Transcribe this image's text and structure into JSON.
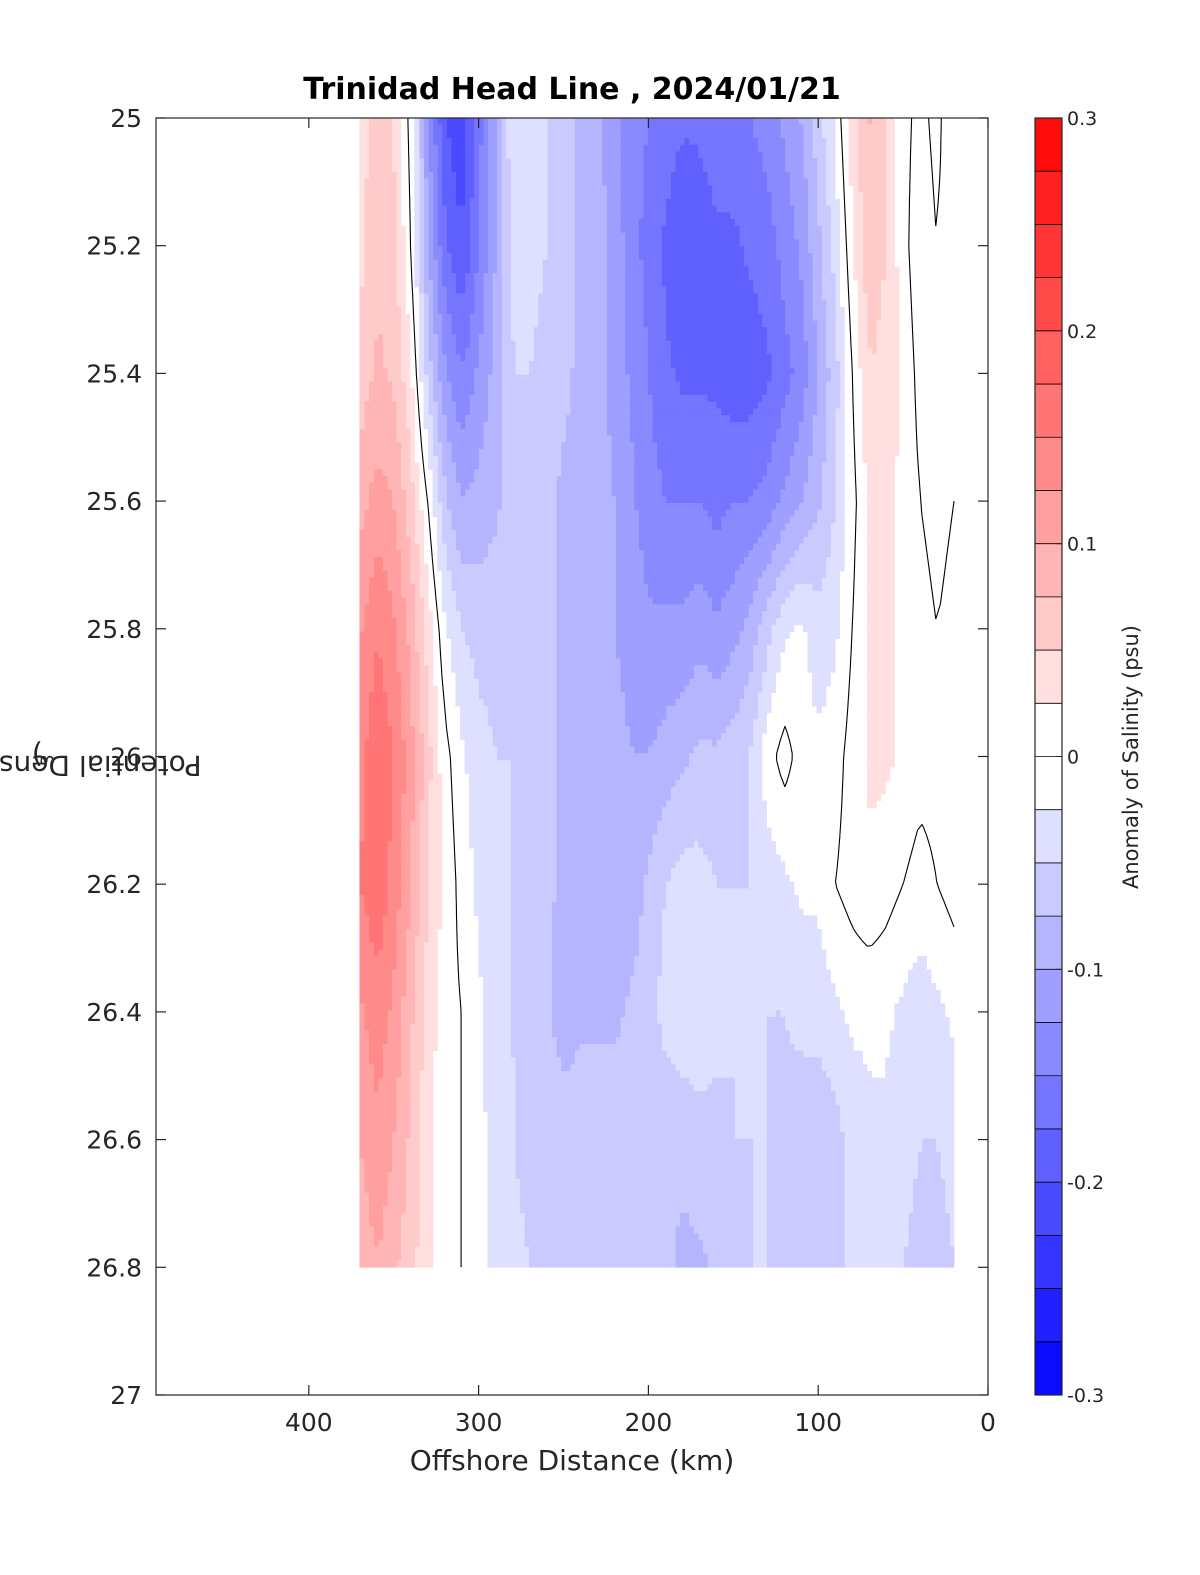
{
  "chart_data": {
    "type": "heatmap",
    "title": "Trinidad Head Line , 2024/01/21",
    "xlabel": "Offshore Distance (km)",
    "ylabel": "Potential Density (kg/m",
    "ylabel_sup": "3",
    "ylabel_close": ")",
    "colorbar_label": "Anomaly of Salinity (psu)",
    "xlim": [
      490,
      0
    ],
    "x_reversed": true,
    "ylim": [
      25,
      27
    ],
    "y_reversed": true,
    "xticks": [
      400,
      300,
      200,
      100,
      0
    ],
    "yticks": [
      "25",
      "25.2",
      "25.4",
      "25.6",
      "25.8",
      "26",
      "26.2",
      "26.4",
      "26.6",
      "26.8",
      "27"
    ],
    "colorbar_ticks": [
      "0.3",
      "0.2",
      "0.1",
      "0",
      "-0.1",
      "-0.2",
      "-0.3"
    ],
    "colorbar_range": [
      -0.3,
      0.3
    ],
    "contour_interval": 0.025,
    "colormap": {
      "low": "#0000ff",
      "mid": "#ffffff",
      "high": "#ff0000"
    },
    "grid": false,
    "zero_contour_color": "#000000",
    "columns": [
      {
        "x": 370,
        "values": [
          0.04,
          0.04,
          0.06,
          0.09,
          0.12,
          0.14,
          0.15,
          0.12,
          0.1,
          0.08
        ]
      },
      {
        "x": 360,
        "values": [
          0.06,
          0.07,
          0.08,
          0.11,
          0.15,
          0.17,
          0.17,
          0.14,
          0.12,
          0.1
        ]
      },
      {
        "x": 350,
        "values": [
          0.05,
          0.06,
          0.07,
          0.1,
          0.13,
          0.15,
          0.14,
          0.12,
          0.1,
          0.08
        ]
      },
      {
        "x": 340,
        "values": [
          -0.01,
          0.0,
          0.03,
          0.06,
          0.09,
          0.11,
          0.1,
          0.08,
          0.07,
          0.06
        ]
      },
      {
        "x": 330,
        "values": [
          -0.12,
          -0.1,
          -0.06,
          0.0,
          0.04,
          0.06,
          0.05,
          0.04,
          0.03,
          0.03
        ]
      },
      {
        "x": 320,
        "values": [
          -0.2,
          -0.17,
          -0.12,
          -0.07,
          -0.02,
          0.01,
          0.02,
          0.01,
          0.01,
          0.01
        ]
      },
      {
        "x": 310,
        "values": [
          -0.22,
          -0.2,
          -0.15,
          -0.1,
          -0.05,
          -0.02,
          -0.01,
          0.0,
          0.0,
          0.0
        ]
      },
      {
        "x": 300,
        "values": [
          -0.16,
          -0.15,
          -0.12,
          -0.09,
          -0.06,
          -0.04,
          -0.03,
          -0.02,
          -0.02,
          -0.02
        ]
      },
      {
        "x": 290,
        "values": [
          -0.1,
          -0.1,
          -0.09,
          -0.08,
          -0.06,
          -0.05,
          -0.04,
          -0.04,
          -0.03,
          -0.03
        ]
      },
      {
        "x": 280,
        "values": [
          -0.03,
          -0.04,
          -0.05,
          -0.06,
          -0.06,
          -0.05,
          -0.05,
          -0.05,
          -0.05,
          -0.04
        ]
      },
      {
        "x": 270,
        "values": [
          -0.03,
          -0.04,
          -0.05,
          -0.06,
          -0.06,
          -0.06,
          -0.06,
          -0.06,
          -0.06,
          -0.05
        ]
      },
      {
        "x": 260,
        "values": [
          -0.05,
          -0.05,
          -0.06,
          -0.07,
          -0.07,
          -0.07,
          -0.07,
          -0.07,
          -0.06,
          -0.05
        ]
      },
      {
        "x": 250,
        "values": [
          -0.06,
          -0.06,
          -0.07,
          -0.08,
          -0.08,
          -0.08,
          -0.08,
          -0.09,
          -0.06,
          -0.05
        ]
      },
      {
        "x": 240,
        "values": [
          -0.08,
          -0.08,
          -0.08,
          -0.08,
          -0.08,
          -0.08,
          -0.08,
          -0.08,
          -0.06,
          -0.05
        ]
      },
      {
        "x": 230,
        "values": [
          -0.09,
          -0.09,
          -0.09,
          -0.09,
          -0.09,
          -0.08,
          -0.08,
          -0.08,
          -0.06,
          -0.05
        ]
      },
      {
        "x": 220,
        "values": [
          -0.12,
          -0.11,
          -0.11,
          -0.1,
          -0.1,
          -0.09,
          -0.1,
          -0.08,
          -0.06,
          -0.05
        ]
      },
      {
        "x": 210,
        "values": [
          -0.14,
          -0.14,
          -0.13,
          -0.12,
          -0.11,
          -0.1,
          -0.09,
          -0.07,
          -0.07,
          -0.06
        ]
      },
      {
        "x": 200,
        "values": [
          -0.15,
          -0.16,
          -0.15,
          -0.14,
          -0.12,
          -0.1,
          -0.07,
          -0.06,
          -0.07,
          -0.07
        ]
      },
      {
        "x": 190,
        "values": [
          -0.16,
          -0.18,
          -0.17,
          -0.15,
          -0.12,
          -0.09,
          -0.05,
          -0.04,
          -0.07,
          -0.07
        ]
      },
      {
        "x": 180,
        "values": [
          -0.17,
          -0.2,
          -0.18,
          -0.15,
          -0.12,
          -0.08,
          -0.04,
          -0.03,
          -0.07,
          -0.08
        ]
      },
      {
        "x": 170,
        "values": [
          -0.17,
          -0.19,
          -0.18,
          -0.15,
          -0.11,
          -0.07,
          -0.04,
          -0.03,
          -0.06,
          -0.08
        ]
      },
      {
        "x": 160,
        "values": [
          -0.16,
          -0.18,
          -0.18,
          -0.16,
          -0.12,
          -0.07,
          -0.05,
          -0.04,
          -0.06,
          -0.07
        ]
      },
      {
        "x": 150,
        "values": [
          -0.16,
          -0.18,
          -0.19,
          -0.15,
          -0.11,
          -0.06,
          -0.05,
          -0.05,
          -0.05,
          -0.06
        ]
      },
      {
        "x": 140,
        "values": [
          -0.15,
          -0.17,
          -0.19,
          -0.15,
          -0.09,
          -0.05,
          -0.05,
          -0.05,
          -0.05,
          -0.05
        ]
      },
      {
        "x": 130,
        "values": [
          -0.14,
          -0.16,
          -0.18,
          -0.14,
          -0.06,
          -0.01,
          -0.04,
          -0.05,
          -0.05,
          -0.05
        ]
      },
      {
        "x": 120,
        "values": [
          -0.12,
          -0.14,
          -0.16,
          -0.12,
          -0.03,
          0.01,
          -0.03,
          -0.05,
          -0.06,
          -0.05
        ]
      },
      {
        "x": 110,
        "values": [
          -0.1,
          -0.12,
          -0.14,
          -0.1,
          -0.02,
          -0.01,
          -0.02,
          -0.04,
          -0.07,
          -0.06
        ]
      },
      {
        "x": 100,
        "values": [
          -0.06,
          -0.08,
          -0.1,
          -0.08,
          -0.04,
          -0.02,
          -0.02,
          -0.04,
          -0.07,
          -0.06
        ]
      },
      {
        "x": 90,
        "values": [
          -0.02,
          -0.04,
          -0.06,
          -0.05,
          -0.03,
          -0.01,
          0.0,
          -0.03,
          -0.06,
          -0.06
        ]
      },
      {
        "x": 80,
        "values": [
          0.04,
          0.02,
          0.0,
          -0.01,
          0.0,
          0.01,
          0.01,
          -0.02,
          -0.04,
          -0.04
        ]
      },
      {
        "x": 70,
        "values": [
          0.08,
          0.07,
          0.05,
          0.03,
          0.03,
          0.03,
          0.02,
          -0.02,
          -0.03,
          -0.04
        ]
      },
      {
        "x": 60,
        "values": [
          0.05,
          0.05,
          0.04,
          0.03,
          0.03,
          0.03,
          0.01,
          -0.02,
          -0.03,
          -0.04
        ]
      },
      {
        "x": 50,
        "values": [
          0.01,
          0.01,
          0.02,
          0.02,
          0.02,
          0.02,
          0.0,
          -0.03,
          -0.04,
          -0.05
        ]
      },
      {
        "x": 40,
        "values": [
          -0.01,
          -0.02,
          -0.01,
          0.0,
          0.01,
          0.01,
          -0.01,
          -0.04,
          -0.05,
          -0.06
        ]
      },
      {
        "x": 30,
        "values": [
          0.01,
          0.0,
          -0.01,
          -0.01,
          0.0,
          0.01,
          0.0,
          -0.03,
          -0.05,
          -0.06
        ]
      },
      {
        "x": 20,
        "values": [
          -0.03,
          -0.02,
          -0.01,
          0.0,
          0.01,
          0.02,
          0.01,
          -0.02,
          -0.04,
          -0.05
        ]
      }
    ],
    "density_levels": [
      25.0,
      25.2,
      25.4,
      25.6,
      25.8,
      26.0,
      26.2,
      26.4,
      26.6,
      26.8
    ]
  }
}
